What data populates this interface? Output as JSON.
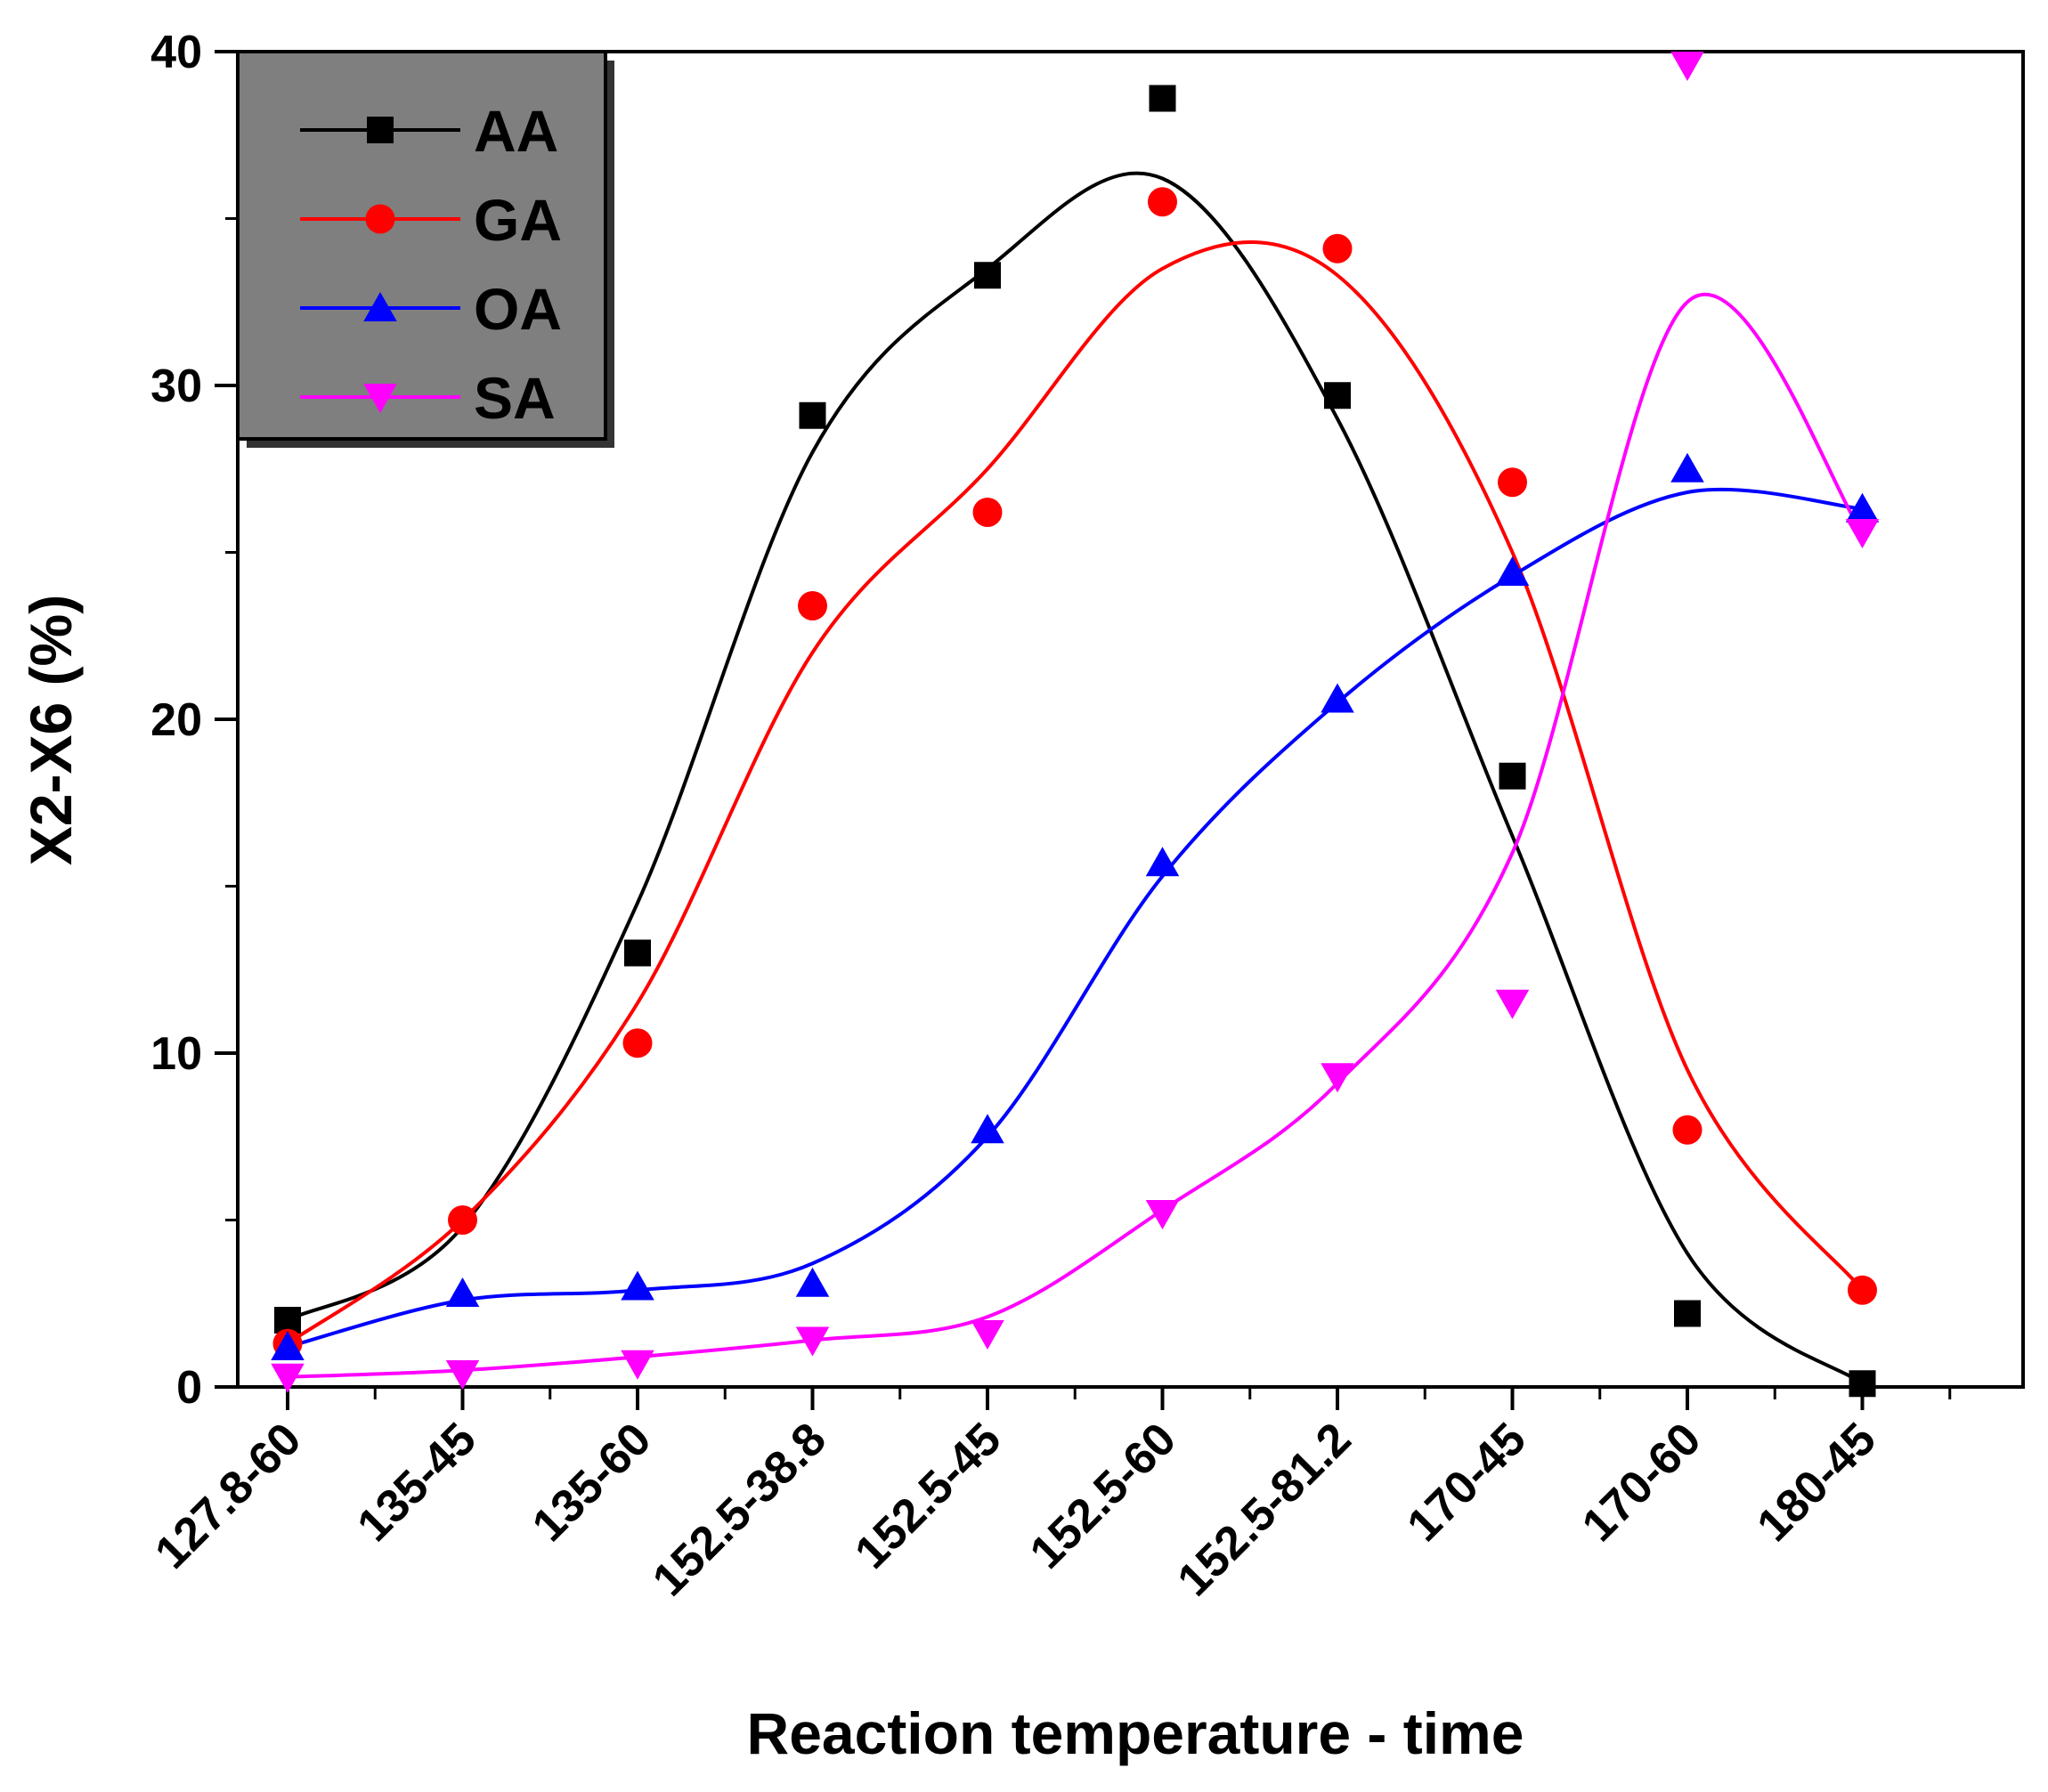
{
  "chart_data": {
    "type": "line",
    "xlabel": "Reaction temperature - time",
    "ylabel": "X2-X6 (%)",
    "categories": [
      "127.8-60",
      "135-45",
      "135-60",
      "152.5-38.8",
      "152.5-45",
      "152.5-60",
      "152.5-81.2",
      "170-45",
      "170-60",
      "180-45"
    ],
    "ylim": [
      0,
      40
    ],
    "yticks": [
      "0",
      "10",
      "20",
      "30",
      "40"
    ],
    "grid": false,
    "legend_position": "top-left",
    "series": [
      {
        "name": "AA",
        "color": "#000000",
        "marker": "square",
        "values": [
          2.0,
          null,
          13.0,
          29.1,
          33.3,
          38.6,
          29.7,
          18.3,
          2.2,
          0.1
        ],
        "curve": [
          2.0,
          4.8,
          14.5,
          28.0,
          33.5,
          36.2,
          29.0,
          16.5,
          4.0,
          0.1
        ]
      },
      {
        "name": "GA",
        "color": "#ff0000",
        "marker": "circle",
        "values": [
          1.3,
          5.0,
          10.3,
          23.4,
          26.2,
          35.5,
          34.1,
          27.1,
          7.7,
          2.9
        ],
        "curve": [
          1.3,
          5.0,
          11.5,
          22.0,
          27.5,
          33.5,
          33.3,
          25.0,
          9.5,
          2.9
        ]
      },
      {
        "name": "OA",
        "color": "#0000ff",
        "marker": "triangle-up",
        "values": [
          1.2,
          2.8,
          3.0,
          3.1,
          7.7,
          15.7,
          20.6,
          24.4,
          27.5,
          26.3
        ],
        "curve": [
          1.2,
          2.6,
          2.9,
          3.7,
          7.5,
          15.3,
          20.5,
          24.3,
          26.8,
          26.3
        ]
      },
      {
        "name": "SA",
        "color": "#ff00ff",
        "marker": "triangle-down",
        "values": [
          0.3,
          0.4,
          0.7,
          1.4,
          1.6,
          5.2,
          9.3,
          11.5,
          39.6,
          25.6
        ],
        "curve": [
          0.3,
          0.5,
          0.9,
          1.4,
          2.1,
          5.3,
          9.1,
          16.0,
          32.5,
          25.6
        ]
      }
    ]
  }
}
